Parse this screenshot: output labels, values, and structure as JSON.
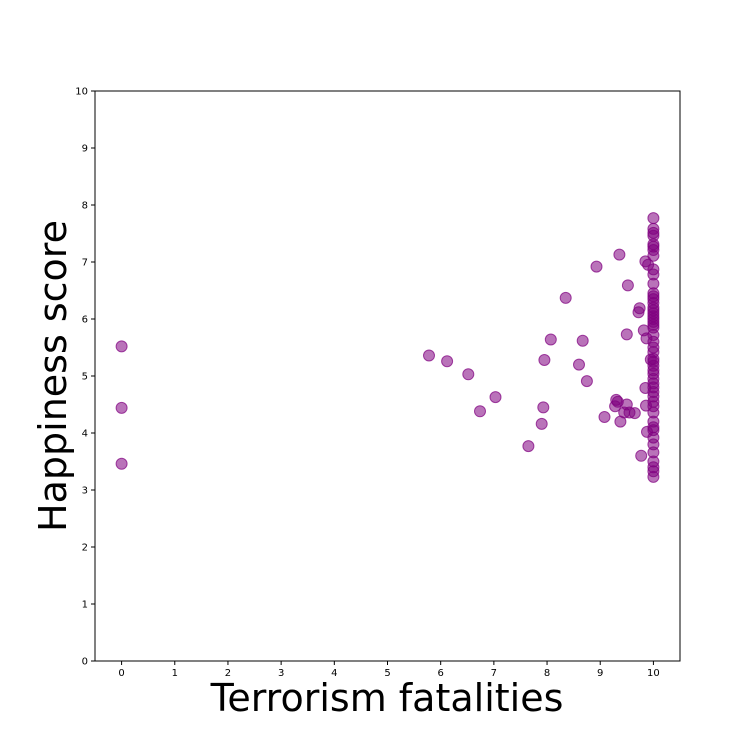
{
  "chart_data": {
    "type": "scatter",
    "title": "",
    "xlabel": "Terrorism fatalities",
    "ylabel": "Happiness score",
    "xlim": [
      -0.5,
      10.5
    ],
    "ylim": [
      0,
      10
    ],
    "xticks": [
      "0",
      "1",
      "2",
      "3",
      "4",
      "5",
      "6",
      "7",
      "8",
      "9",
      "10"
    ],
    "yticks": [
      "0",
      "1",
      "2",
      "3",
      "4",
      "5",
      "6",
      "7",
      "8",
      "9",
      "10"
    ],
    "grid": false,
    "marker_color": "#800080",
    "marker_opacity": 0.55,
    "series": [
      {
        "points": [
          [
            0,
            5.52
          ],
          [
            0,
            4.44
          ],
          [
            0,
            3.46
          ],
          [
            5.78,
            5.36
          ],
          [
            6.12,
            5.26
          ],
          [
            6.52,
            5.03
          ],
          [
            6.74,
            4.38
          ],
          [
            7.03,
            4.63
          ],
          [
            7.65,
            3.77
          ],
          [
            7.9,
            4.16
          ],
          [
            7.93,
            4.45
          ],
          [
            7.95,
            5.28
          ],
          [
            8.07,
            5.64
          ],
          [
            8.35,
            6.37
          ],
          [
            8.6,
            5.2
          ],
          [
            8.67,
            5.62
          ],
          [
            8.75,
            4.91
          ],
          [
            8.93,
            6.92
          ],
          [
            9.08,
            4.28
          ],
          [
            9.28,
            4.47
          ],
          [
            9.3,
            4.58
          ],
          [
            9.33,
            4.55
          ],
          [
            9.36,
            7.13
          ],
          [
            9.38,
            4.2
          ],
          [
            9.45,
            4.36
          ],
          [
            9.5,
            4.5
          ],
          [
            9.5,
            5.73
          ],
          [
            9.52,
            6.59
          ],
          [
            9.55,
            4.36
          ],
          [
            9.65,
            4.35
          ],
          [
            9.72,
            6.12
          ],
          [
            9.74,
            6.19
          ],
          [
            9.77,
            3.6
          ],
          [
            9.82,
            5.8
          ],
          [
            9.85,
            7.01
          ],
          [
            9.85,
            4.79
          ],
          [
            9.86,
            4.48
          ],
          [
            9.87,
            5.66
          ],
          [
            9.88,
            4.02
          ],
          [
            9.9,
            6.95
          ],
          [
            9.95,
            5.29
          ],
          [
            10,
            7.77
          ],
          [
            10,
            7.58
          ],
          [
            10,
            7.51
          ],
          [
            10,
            7.46
          ],
          [
            10,
            7.31
          ],
          [
            10,
            7.27
          ],
          [
            10,
            7.21
          ],
          [
            10,
            7.11
          ],
          [
            10,
            6.87
          ],
          [
            10,
            6.78
          ],
          [
            10,
            6.62
          ],
          [
            10,
            6.45
          ],
          [
            10,
            6.4
          ],
          [
            10,
            6.35
          ],
          [
            10,
            6.28
          ],
          [
            10,
            6.2
          ],
          [
            10,
            6.15
          ],
          [
            10,
            6.1
          ],
          [
            10,
            6.05
          ],
          [
            10,
            6.0
          ],
          [
            10,
            5.95
          ],
          [
            10,
            5.9
          ],
          [
            10,
            5.85
          ],
          [
            10,
            5.72
          ],
          [
            10,
            5.6
          ],
          [
            10,
            5.5
          ],
          [
            10,
            5.42
          ],
          [
            10,
            5.3
          ],
          [
            10,
            5.25
          ],
          [
            10,
            5.18
          ],
          [
            10,
            5.1
          ],
          [
            10,
            5.04
          ],
          [
            10,
            4.95
          ],
          [
            10,
            4.87
          ],
          [
            10,
            4.8
          ],
          [
            10,
            4.72
          ],
          [
            10,
            4.64
          ],
          [
            10,
            4.55
          ],
          [
            10,
            4.47
          ],
          [
            10,
            4.36
          ],
          [
            10,
            4.2
          ],
          [
            10,
            4.1
          ],
          [
            10,
            4.05
          ],
          [
            10,
            3.92
          ],
          [
            10,
            3.8
          ],
          [
            10,
            3.66
          ],
          [
            10,
            3.5
          ],
          [
            10,
            3.4
          ],
          [
            10,
            3.33
          ],
          [
            10,
            3.23
          ]
        ]
      }
    ]
  }
}
